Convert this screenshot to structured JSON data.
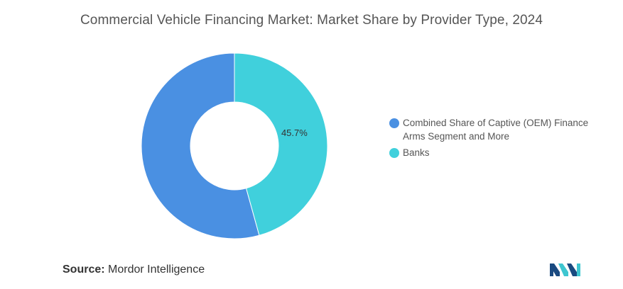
{
  "chart_data": {
    "type": "pie",
    "title": "Commercial Vehicle Financing Market: Market Share by Provider Type, 2024",
    "donut": true,
    "slices": [
      {
        "label": "Combined Share of Captive (OEM) Finance Arms Segment and More",
        "value": 54.3,
        "color": "#4a90e2",
        "data_label": ""
      },
      {
        "label": "Banks",
        "value": 45.7,
        "color": "#40d0dc",
        "data_label": "45.7%"
      }
    ],
    "legend_placement": "right"
  },
  "source": {
    "label": "Source:",
    "text": "Mordor Intelligence"
  },
  "logo": {
    "icon": "mordor-intelligence-logo-icon",
    "colors": [
      "#1a4a80",
      "#3ec6d0"
    ]
  }
}
